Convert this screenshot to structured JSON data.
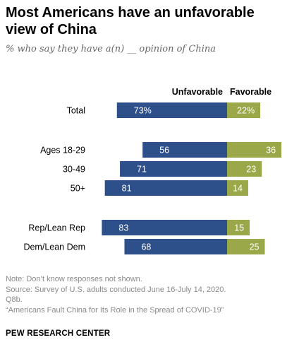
{
  "header": {
    "title_line1": "Most Americans have an unfavorable",
    "title_line2": "view of China",
    "subtitle": "% who say they have a(n) __ opinion of China"
  },
  "colors": {
    "unfavorable": "#2d4f8a",
    "favorable": "#9aa84a",
    "label_text": "#ffffff"
  },
  "chart_data": {
    "type": "bar",
    "orientation": "horizontal-diverging",
    "series": [
      {
        "name": "Unfavorable",
        "color": "#2d4f8a"
      },
      {
        "name": "Favorable",
        "color": "#9aa84a"
      }
    ],
    "groups": [
      {
        "rows": [
          {
            "label": "Total",
            "unfavorable": 73,
            "favorable": 22,
            "unfavorable_label": "73%",
            "favorable_label": "22%"
          }
        ]
      },
      {
        "rows": [
          {
            "label": "Ages 18-29",
            "unfavorable": 56,
            "favorable": 36,
            "unfavorable_label": "56",
            "favorable_label": "36"
          },
          {
            "label": "30-49",
            "unfavorable": 71,
            "favorable": 23,
            "unfavorable_label": "71",
            "favorable_label": "23"
          },
          {
            "label": "50+",
            "unfavorable": 81,
            "favorable": 14,
            "unfavorable_label": "81",
            "favorable_label": "14"
          }
        ]
      },
      {
        "rows": [
          {
            "label": "Rep/Lean Rep",
            "unfavorable": 83,
            "favorable": 15,
            "unfavorable_label": "83",
            "favorable_label": "15"
          },
          {
            "label": "Dem/Lean Dem",
            "unfavorable": 68,
            "favorable": 25,
            "unfavorable_label": "68",
            "favorable_label": "25"
          }
        ]
      }
    ]
  },
  "notes": {
    "note": "Note: Don’t know responses not shown.",
    "source_line1": "Source: Survey of U.S. adults conducted June 16-July 14, 2020.",
    "source_line2": "Q8b.",
    "report": "“Americans Fault China for Its Role in the Spread of COVID-19”"
  },
  "brand": "PEW RESEARCH CENTER"
}
